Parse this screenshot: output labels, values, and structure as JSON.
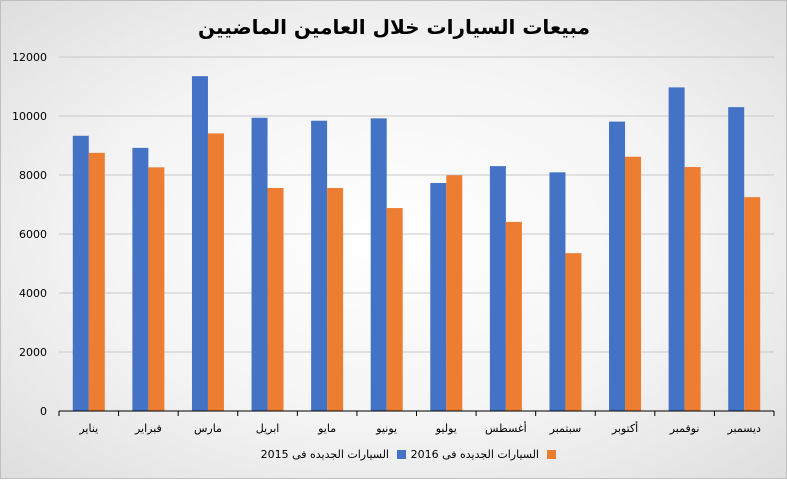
{
  "chart_data": {
    "type": "bar",
    "title": "مبيعات السيارات خلال العامين الماضيين",
    "categories": [
      "يناير",
      "فبراير",
      "مارس",
      "ابريل",
      "مايو",
      "يونيو",
      "يوليو",
      "أغسطس",
      "سبتمبر",
      "أكتوبر",
      "نوفمبر",
      "ديسمبر"
    ],
    "series": [
      {
        "name": "السيارات الجديده فى 2015",
        "color": "#4472C4",
        "values": [
          9330,
          8920,
          11350,
          9940,
          9840,
          9920,
          7730,
          8300,
          8090,
          9810,
          10970,
          10300
        ]
      },
      {
        "name": "السيارات الجديده فى 2016",
        "color": "#ED7D31",
        "values": [
          8750,
          8260,
          9410,
          7560,
          7560,
          6880,
          7990,
          6410,
          5350,
          8620,
          8270,
          7250
        ]
      }
    ],
    "yticks": [
      "0",
      "2000",
      "4000",
      "6000",
      "8000",
      "10000",
      "12000"
    ],
    "ylim": [
      0,
      12000
    ],
    "grid": true,
    "legend_position": "bottom"
  }
}
